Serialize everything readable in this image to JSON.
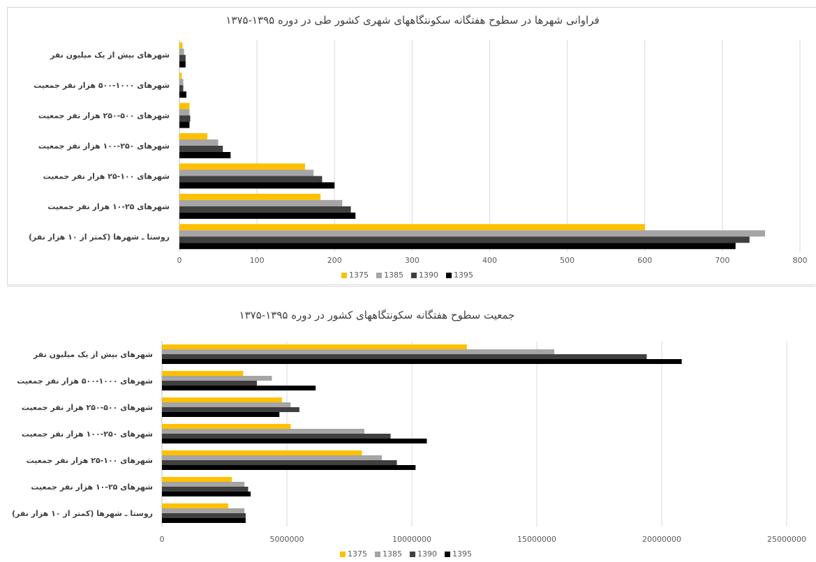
{
  "chart_data": [
    {
      "type": "bar",
      "orientation": "horizontal",
      "title": "فراوانی شهرها در سطوح هفتگانه سکونتگاههای شهری کشور طی در دوره ۱۳۹۵-۱۳۷۵",
      "categories": [
        "روستا ـ شهرها (کمتر از ۱۰ هزار نفر)",
        "شهرهای ۲۵-۱۰ هزار نفر جمعیت",
        "شهرهای ۱۰۰-۲۵ هزار نفر جمعیت",
        "شهرهای ۲۵۰-۱۰۰ هزار نفر جمعیت",
        "شهرهای ۵۰۰-۲۵۰ هزار نفر جمعیت",
        "شهرهای ۱۰۰۰-۵۰۰ هزار نفر جمعیت",
        "شهرهای بیش از یک میلیون نفر"
      ],
      "series": [
        {
          "name": "1375",
          "color": "#FFC000",
          "values": [
            600,
            182,
            162,
            36,
            13,
            3,
            4
          ]
        },
        {
          "name": "1385",
          "color": "#A5A5A5",
          "values": [
            755,
            210,
            173,
            50,
            13,
            5,
            6
          ]
        },
        {
          "name": "1390",
          "color": "#404040",
          "values": [
            735,
            221,
            184,
            56,
            14,
            5,
            8
          ]
        },
        {
          "name": "1395",
          "color": "#000000",
          "values": [
            717,
            227,
            200,
            66,
            13,
            9,
            8
          ]
        }
      ],
      "xlim": [
        0,
        800
      ],
      "xticks": [
        "0",
        "100",
        "200",
        "300",
        "400",
        "500",
        "600",
        "700",
        "800"
      ],
      "tick_values": [
        0,
        100,
        200,
        300,
        400,
        500,
        600,
        700,
        800
      ],
      "grid": true,
      "legend_position": "bottom"
    },
    {
      "type": "bar",
      "orientation": "horizontal",
      "title": "جمعیت سطوح هفتگانه سکونتگاههای کشور در دوره ۱۳۹۵-۱۳۷۵",
      "categories": [
        "روستا ـ شهرها (کمتر از ۱۰ هزار نفر)",
        "شهرهای ۲۵-۱۰ هزار نفر جمعیت",
        "شهرهای ۱۰۰-۲۵ هزار نفر جمعیت",
        "شهرهای ۲۵۰-۱۰۰ هزار نفر جمعیت",
        "شهرهای ۵۰۰-۲۵۰ هزار نفر جمعیت",
        "شهرهای ۱۰۰۰-۵۰۰ هزار نفر جمعیت",
        "شهرهای بیش از یک میلیون نفر"
      ],
      "series": [
        {
          "name": "1375",
          "color": "#FFC000",
          "values": [
            2650000,
            2800000,
            8000000,
            5150000,
            4800000,
            3250000,
            12200000
          ]
        },
        {
          "name": "1385",
          "color": "#A5A5A5",
          "values": [
            3300000,
            3300000,
            8800000,
            8100000,
            5150000,
            4400000,
            15700000
          ]
        },
        {
          "name": "1390",
          "color": "#404040",
          "values": [
            3350000,
            3450000,
            9400000,
            9150000,
            5500000,
            3800000,
            19400000
          ]
        },
        {
          "name": "1395",
          "color": "#000000",
          "values": [
            3350000,
            3550000,
            10150000,
            10600000,
            4700000,
            6150000,
            20800000
          ]
        }
      ],
      "xlim": [
        0,
        25000000
      ],
      "xticks": [
        "0",
        "5000000",
        "10000000",
        "15000000",
        "20000000",
        "25000000"
      ],
      "tick_values": [
        0,
        5000000,
        10000000,
        15000000,
        20000000,
        25000000
      ],
      "grid": true,
      "legend_position": "bottom"
    }
  ]
}
